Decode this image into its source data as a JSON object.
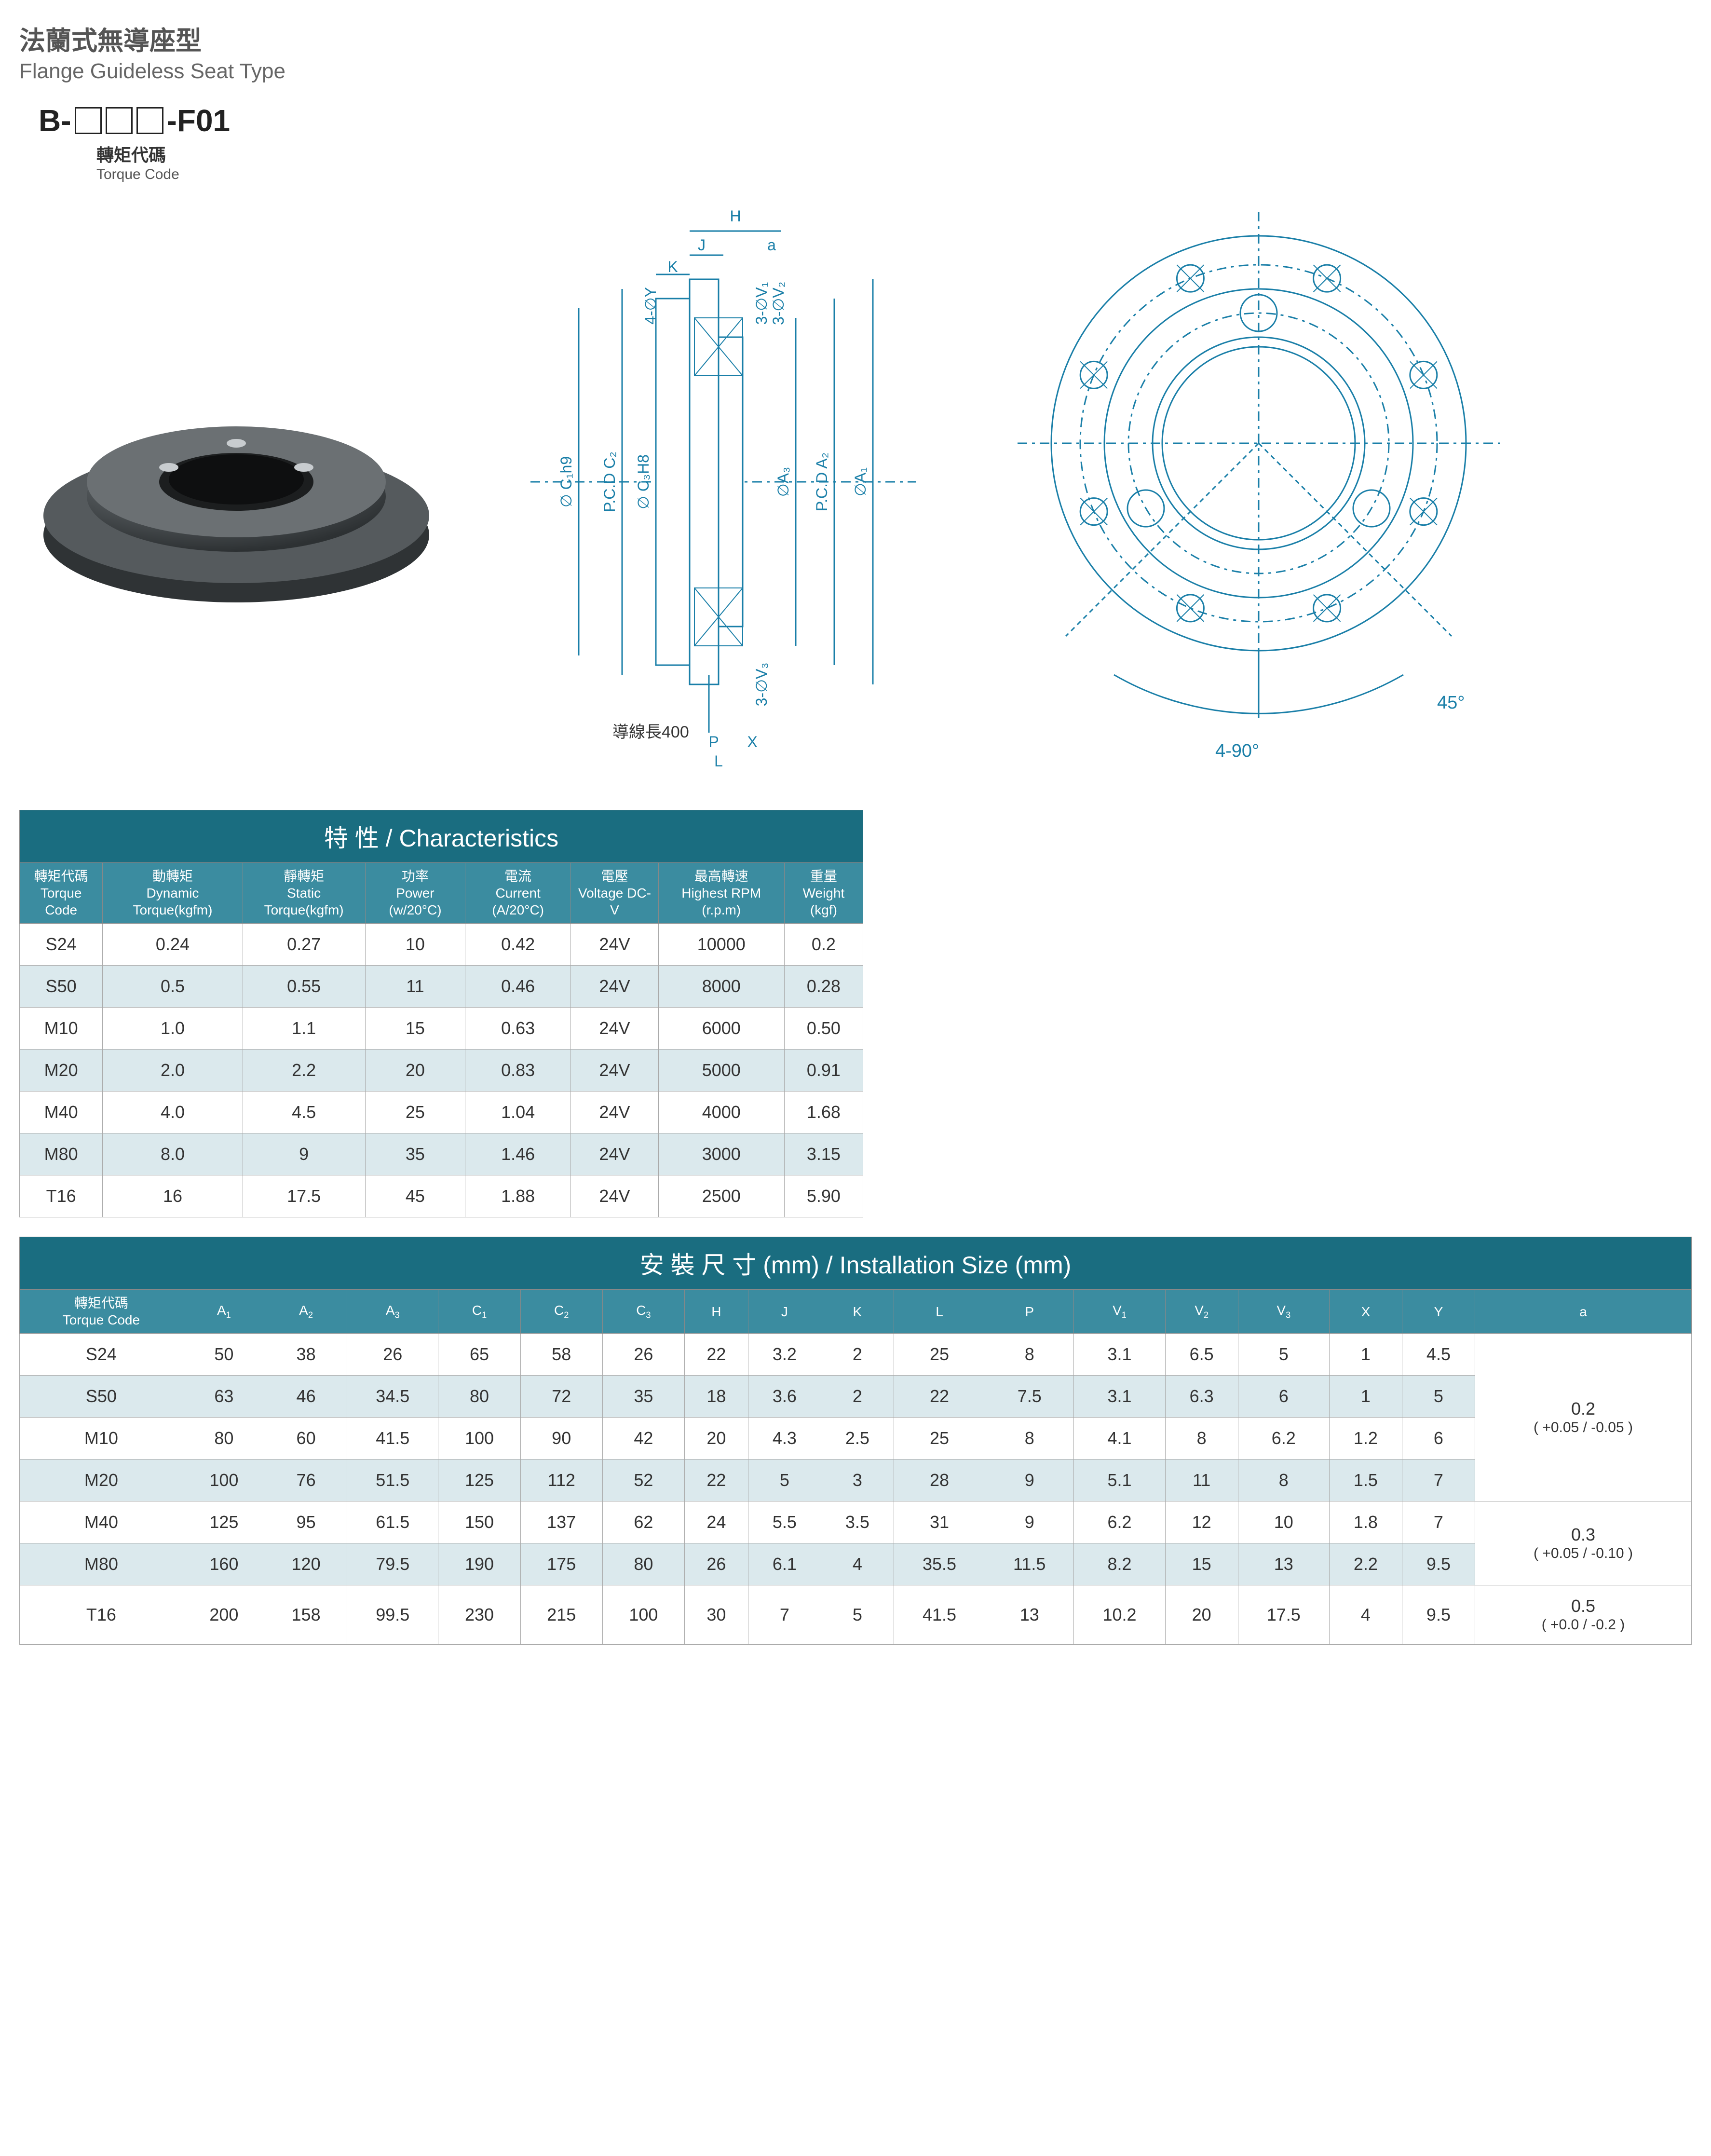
{
  "title_cn": "法蘭式無導座型",
  "title_en": "Flange Guideless Seat Type",
  "model_prefix": "B-",
  "model_suffix": "-F01",
  "torque_code_cn": "轉矩代碼",
  "torque_code_en": "Torque Code",
  "lead_wire_label": "導線長400",
  "angle_45": "45°",
  "angle_490": "4-90°",
  "char_table": {
    "title": "特 性 / Characteristics",
    "columns": [
      {
        "cn": "轉矩代碼",
        "en": "Torque Code"
      },
      {
        "cn": "動轉矩",
        "en": "Dynamic Torque(kgfm)"
      },
      {
        "cn": "靜轉矩",
        "en": "Static Torque(kgfm)"
      },
      {
        "cn": "功率",
        "en": "Power (w/20°C)"
      },
      {
        "cn": "電流",
        "en": "Current (A/20°C)"
      },
      {
        "cn": "電壓",
        "en": "Voltage DC-V"
      },
      {
        "cn": "最高轉速",
        "en": "Highest RPM (r.p.m)"
      },
      {
        "cn": "重量",
        "en": "Weight (kgf)"
      }
    ],
    "rows": [
      [
        "S24",
        "0.24",
        "0.27",
        "10",
        "0.42",
        "24V",
        "10000",
        "0.2"
      ],
      [
        "S50",
        "0.5",
        "0.55",
        "11",
        "0.46",
        "24V",
        "8000",
        "0.28"
      ],
      [
        "M10",
        "1.0",
        "1.1",
        "15",
        "0.63",
        "24V",
        "6000",
        "0.50"
      ],
      [
        "M20",
        "2.0",
        "2.2",
        "20",
        "0.83",
        "24V",
        "5000",
        "0.91"
      ],
      [
        "M40",
        "4.0",
        "4.5",
        "25",
        "1.04",
        "24V",
        "4000",
        "1.68"
      ],
      [
        "M80",
        "8.0",
        "9",
        "35",
        "1.46",
        "24V",
        "3000",
        "3.15"
      ],
      [
        "T16",
        "16",
        "17.5",
        "45",
        "1.88",
        "24V",
        "2500",
        "5.90"
      ]
    ]
  },
  "inst_table": {
    "title": "安 裝 尺 寸 (mm) / Installation Size (mm)",
    "columns": [
      "轉矩代碼\nTorque Code",
      "A1",
      "A2",
      "A3",
      "C1",
      "C2",
      "C3",
      "H",
      "J",
      "K",
      "L",
      "P",
      "V1",
      "V2",
      "V3",
      "X",
      "Y",
      "a"
    ],
    "rows": [
      [
        "S24",
        "50",
        "38",
        "26",
        "65",
        "58",
        "26",
        "22",
        "3.2",
        "2",
        "25",
        "8",
        "3.1",
        "6.5",
        "5",
        "1",
        "4.5"
      ],
      [
        "S50",
        "63",
        "46",
        "34.5",
        "80",
        "72",
        "35",
        "18",
        "3.6",
        "2",
        "22",
        "7.5",
        "3.1",
        "6.3",
        "6",
        "1",
        "5"
      ],
      [
        "M10",
        "80",
        "60",
        "41.5",
        "100",
        "90",
        "42",
        "20",
        "4.3",
        "2.5",
        "25",
        "8",
        "4.1",
        "8",
        "6.2",
        "1.2",
        "6"
      ],
      [
        "M20",
        "100",
        "76",
        "51.5",
        "125",
        "112",
        "52",
        "22",
        "5",
        "3",
        "28",
        "9",
        "5.1",
        "11",
        "8",
        "1.5",
        "7"
      ],
      [
        "M40",
        "125",
        "95",
        "61.5",
        "150",
        "137",
        "62",
        "24",
        "5.5",
        "3.5",
        "31",
        "9",
        "6.2",
        "12",
        "10",
        "1.8",
        "7"
      ],
      [
        "M80",
        "160",
        "120",
        "79.5",
        "190",
        "175",
        "80",
        "26",
        "6.1",
        "4",
        "35.5",
        "11.5",
        "8.2",
        "15",
        "13",
        "2.2",
        "9.5"
      ],
      [
        "T16",
        "200",
        "158",
        "99.5",
        "230",
        "215",
        "100",
        "30",
        "7",
        "5",
        "41.5",
        "13",
        "10.2",
        "20",
        "17.5",
        "4",
        "9.5"
      ]
    ],
    "a_groups": [
      {
        "span": 4,
        "main": "0.2",
        "tol": "( +0.05 / -0.05 )"
      },
      {
        "span": 2,
        "main": "0.3",
        "tol": "( +0.05 / -0.10 )"
      },
      {
        "span": 1,
        "main": "0.5",
        "tol": "( +0.0 / -0.2 )"
      }
    ]
  },
  "colors": {
    "title_bg": "#1a6d80",
    "head_bg": "#3b8ca0",
    "row_alt": "#dbe9ed",
    "border": "#888888",
    "diagram_stroke": "#1a7fa8"
  }
}
